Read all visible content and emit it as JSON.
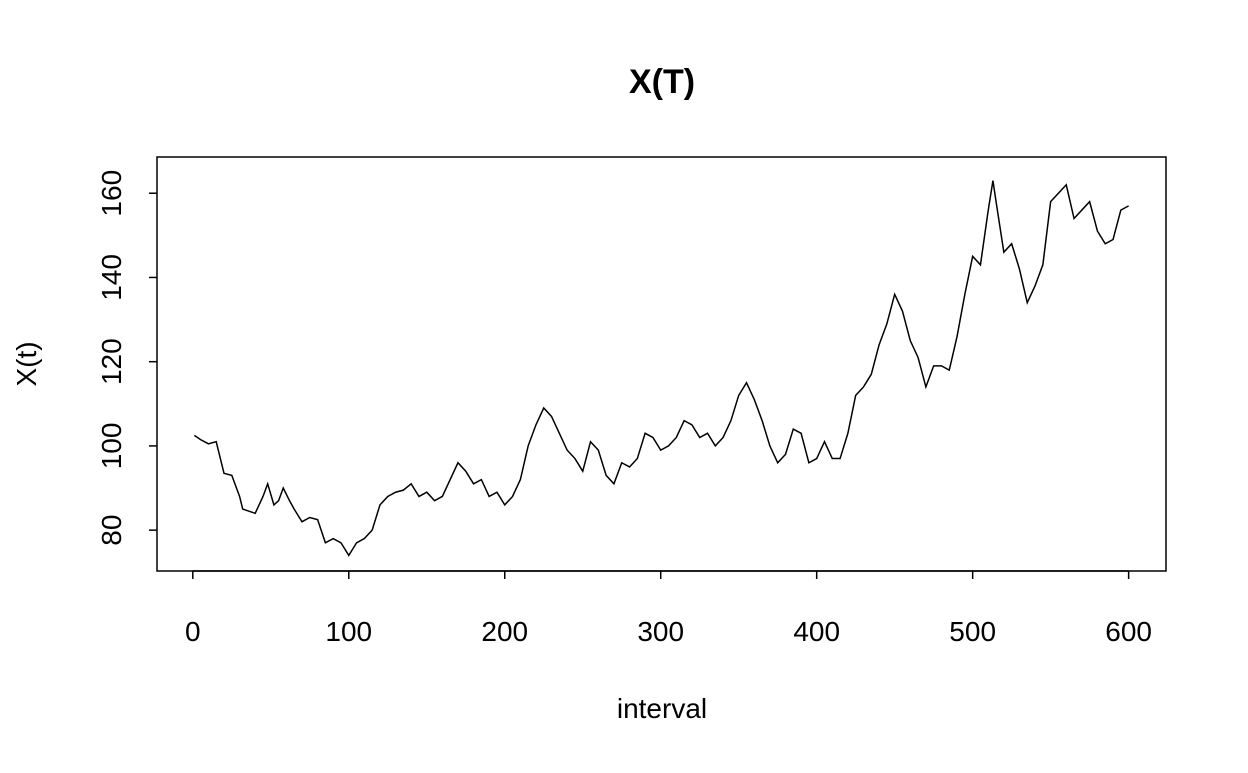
{
  "chart_data": {
    "type": "line",
    "title": "X(T)",
    "xlabel": "interval",
    "ylabel": "X(t)",
    "x": [
      1,
      5,
      10,
      15,
      20,
      25,
      30,
      32,
      40,
      45,
      48,
      52,
      55,
      58,
      62,
      65,
      70,
      75,
      80,
      85,
      90,
      95,
      100,
      105,
      110,
      115,
      120,
      125,
      130,
      135,
      140,
      145,
      150,
      155,
      160,
      165,
      170,
      175,
      180,
      185,
      190,
      195,
      200,
      205,
      210,
      215,
      220,
      225,
      230,
      235,
      240,
      245,
      250,
      255,
      260,
      265,
      270,
      275,
      280,
      285,
      290,
      295,
      300,
      305,
      310,
      315,
      320,
      325,
      330,
      335,
      340,
      345,
      350,
      355,
      360,
      365,
      370,
      375,
      380,
      385,
      390,
      395,
      400,
      405,
      410,
      415,
      420,
      425,
      430,
      435,
      440,
      445,
      450,
      455,
      460,
      465,
      470,
      475,
      480,
      485,
      490,
      495,
      500,
      505,
      510,
      513,
      515,
      520,
      525,
      530,
      535,
      540,
      545,
      550,
      555,
      560,
      565,
      570,
      575,
      580,
      585,
      590,
      595,
      600
    ],
    "series": [
      {
        "name": "X(t)",
        "color": "#000000",
        "values": [
          102.5,
          101.5,
          100.5,
          101,
          93.5,
          93,
          88,
          85,
          84,
          88,
          91,
          86,
          87,
          90,
          87,
          85,
          82,
          83,
          82.5,
          77,
          78,
          77,
          74,
          77,
          78,
          80,
          86,
          88,
          89,
          89.5,
          91,
          88,
          89,
          87,
          88,
          92,
          96,
          94,
          91,
          92,
          88,
          89,
          86,
          88,
          92,
          100,
          105,
          109,
          107,
          103,
          99,
          97,
          94,
          101,
          99,
          93,
          91,
          96,
          95,
          97,
          103,
          102,
          99,
          100,
          102,
          106,
          105,
          102,
          103,
          100,
          102,
          106,
          112,
          115,
          111,
          106,
          100,
          96,
          98,
          104,
          103,
          96,
          97,
          101,
          97,
          97,
          103,
          112,
          114,
          117,
          124,
          129,
          136,
          132,
          125,
          121,
          114,
          119,
          119,
          118,
          126,
          136,
          145,
          143,
          156,
          163,
          158,
          146,
          148,
          142,
          134,
          138,
          143,
          158,
          160,
          162,
          154,
          156,
          158,
          151,
          148,
          149,
          156,
          157
        ]
      }
    ],
    "xlim": [
      -22.96,
      623.96
    ],
    "ylim": [
      70.3,
      168.6
    ],
    "xticks": [
      0,
      100,
      200,
      300,
      400,
      500,
      600
    ],
    "yticks": [
      80,
      100,
      120,
      140,
      160
    ]
  }
}
